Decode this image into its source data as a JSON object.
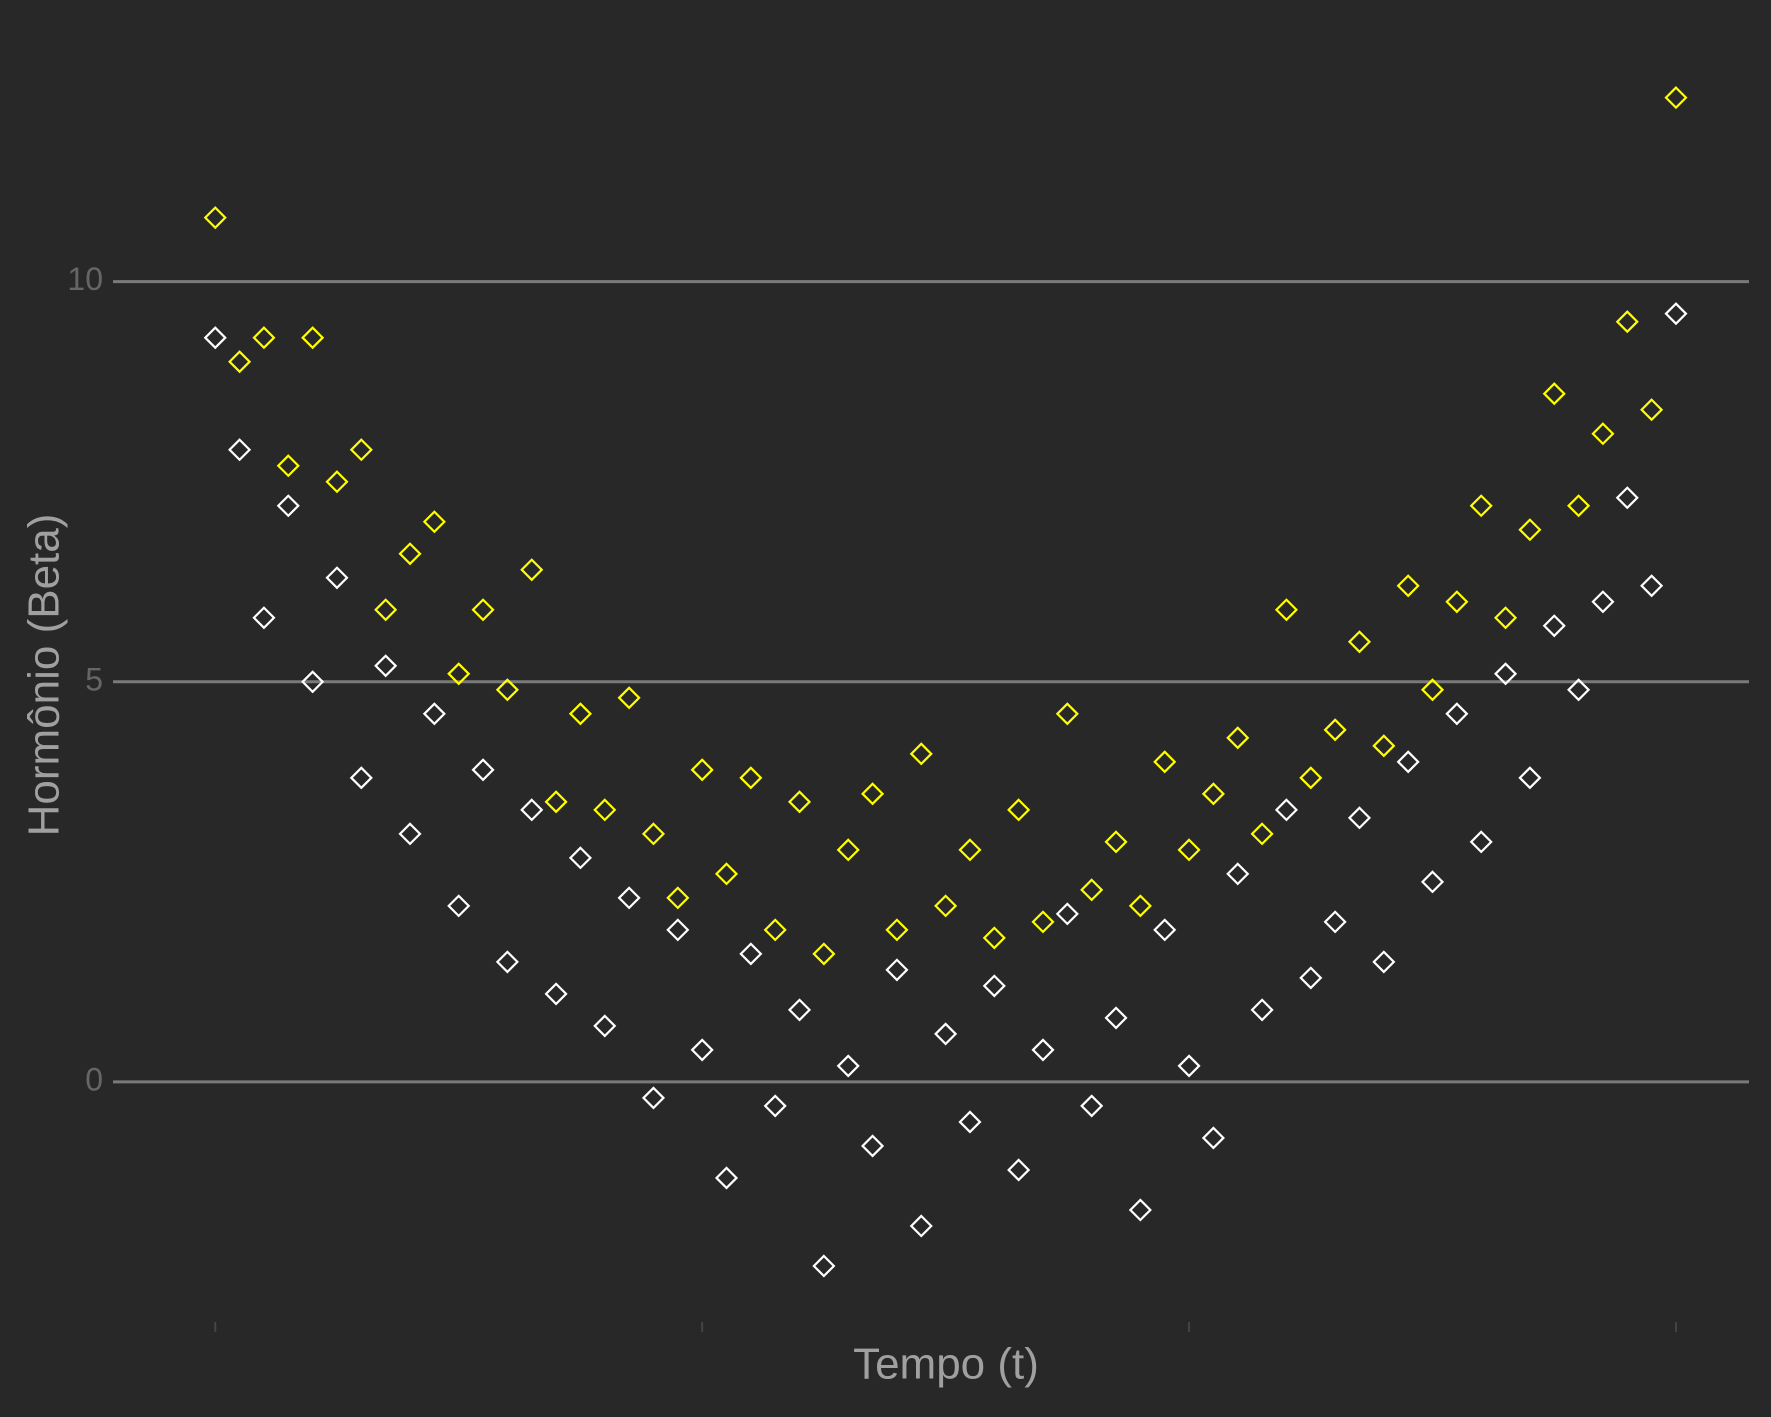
{
  "chart_data": {
    "type": "scatter",
    "x_label": "Tempo (t)",
    "y_label": "Hormônio (Beta)",
    "x": [
      0,
      0.05,
      0.1,
      0.15,
      0.2,
      0.25,
      0.3,
      0.35,
      0.4,
      0.45,
      0.5,
      0.55,
      0.6,
      0.65,
      0.7,
      0.75,
      0.8,
      0.85,
      0.9,
      0.95,
      1.0,
      1.05,
      1.1,
      1.15,
      1.2,
      1.25,
      1.3,
      1.35,
      1.4,
      1.45,
      1.5,
      1.55,
      1.6,
      1.65,
      1.7,
      1.75,
      1.8,
      1.85,
      1.9,
      1.95,
      2.0,
      2.05,
      2.1,
      2.15,
      2.2,
      2.25,
      2.3,
      2.35,
      2.4,
      2.45,
      2.5,
      2.55,
      2.6,
      2.65,
      2.7,
      2.75,
      2.8,
      2.85,
      2.9,
      2.95,
      3.0
    ],
    "series": [
      {
        "color": "#ffff00",
        "values": [
          10.8,
          9.0,
          9.3,
          7.7,
          9.3,
          7.5,
          7.9,
          5.9,
          6.6,
          7.0,
          5.1,
          5.9,
          4.9,
          6.4,
          3.5,
          4.6,
          3.4,
          4.8,
          3.1,
          2.3,
          3.9,
          2.6,
          3.8,
          1.9,
          3.5,
          1.6,
          2.9,
          3.6,
          1.9,
          4.1,
          2.2,
          2.9,
          1.8,
          3.4,
          2.0,
          4.6,
          2.4,
          3.0,
          2.2,
          4.0,
          2.9,
          3.6,
          4.3,
          3.1,
          5.9,
          3.8,
          4.4,
          5.5,
          4.2,
          6.2,
          4.9,
          6.0,
          7.2,
          5.8,
          6.9,
          8.6,
          7.2,
          8.1,
          9.5,
          8.4,
          12.3
        ]
      },
      {
        "color": "#ffffff",
        "values": [
          9.3,
          7.9,
          5.8,
          7.2,
          5.0,
          6.3,
          3.8,
          5.2,
          3.1,
          4.6,
          2.2,
          3.9,
          1.5,
          3.4,
          1.1,
          2.8,
          0.7,
          2.3,
          -0.2,
          1.9,
          0.4,
          -1.2,
          1.6,
          -0.3,
          0.9,
          -2.3,
          0.2,
          -0.8,
          1.4,
          -1.8,
          0.6,
          -0.5,
          1.2,
          -1.1,
          0.4,
          2.1,
          -0.3,
          0.8,
          -1.6,
          1.9,
          0.2,
          -0.7,
          2.6,
          0.9,
          3.4,
          1.3,
          2.0,
          3.3,
          1.5,
          4.0,
          2.5,
          4.6,
          3.0,
          5.1,
          3.8,
          5.7,
          4.9,
          6.0,
          7.3,
          6.2,
          9.6
        ]
      }
    ],
    "xlim": [
      -0.21,
      3.15
    ],
    "xticks": [
      0,
      1,
      2,
      3
    ],
    "ylim": [
      -2.85,
      12.97
    ],
    "yticks": [
      0,
      5,
      10
    ],
    "grid": true
  }
}
